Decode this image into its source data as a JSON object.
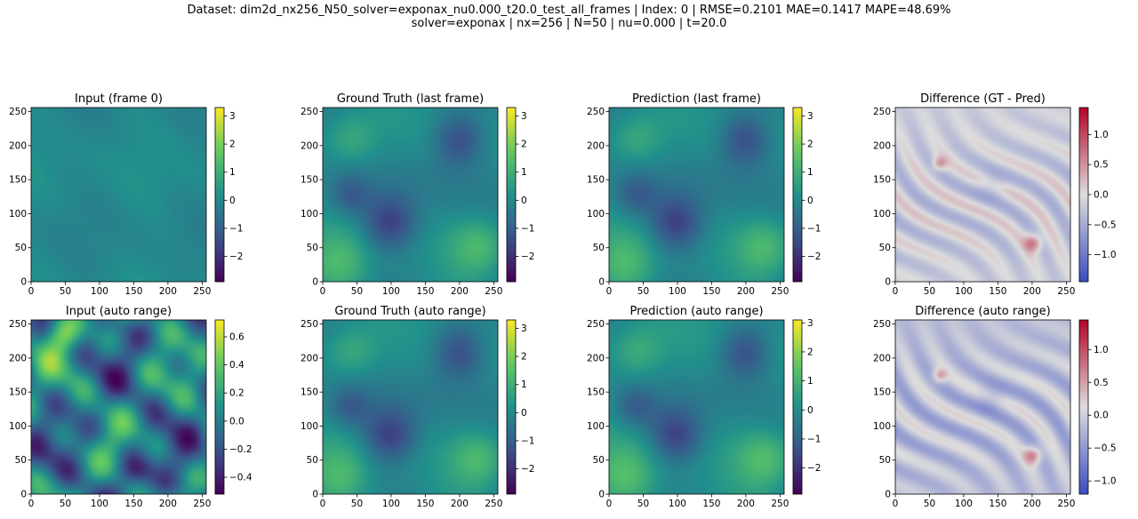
{
  "header": {
    "line1": "Dataset: dim2d_nx256_N50_solver=exponax_nu0.000_t20.0_test_all_frames | Index: 0 | RMSE=0.2101  MAE=0.1417  MAPE=48.69%",
    "line2": "solver=exponax | nx=256 | N=50 | nu=0.000 | t=20.0"
  },
  "colors": {
    "viridis": [
      "#440154",
      "#3b528b",
      "#21918c",
      "#5ec962",
      "#fde725"
    ],
    "coolwarm": [
      "#3b4cc0",
      "#dddddd",
      "#b40426"
    ]
  },
  "chart_data": [
    {
      "type": "heatmap",
      "title": "Input (frame 0)",
      "colormap": "viridis",
      "field": "input_flat",
      "xlim": [
        0,
        256
      ],
      "ylim": [
        0,
        256
      ],
      "xticks": [
        0,
        50,
        100,
        150,
        200,
        250
      ],
      "yticks": [
        0,
        50,
        100,
        150,
        200,
        250
      ],
      "colorbar": {
        "range": [
          -2.9,
          3.3
        ],
        "ticks": [
          3,
          2,
          1,
          0,
          -1,
          -2
        ],
        "tick_labels": [
          "3",
          "2",
          "1",
          "0",
          "−1",
          "−2"
        ]
      }
    },
    {
      "type": "heatmap",
      "title": "Ground Truth (last frame)",
      "colormap": "viridis",
      "field": "vortex",
      "xlim": [
        0,
        256
      ],
      "ylim": [
        0,
        256
      ],
      "xticks": [
        0,
        50,
        100,
        150,
        200,
        250
      ],
      "yticks": [
        0,
        50,
        100,
        150,
        200,
        250
      ],
      "colorbar": {
        "range": [
          -2.9,
          3.3
        ],
        "ticks": [
          3,
          2,
          1,
          0,
          -1,
          -2
        ],
        "tick_labels": [
          "3",
          "2",
          "1",
          "0",
          "−1",
          "−2"
        ]
      }
    },
    {
      "type": "heatmap",
      "title": "Prediction (last frame)",
      "colormap": "viridis",
      "field": "vortex",
      "xlim": [
        0,
        256
      ],
      "ylim": [
        0,
        256
      ],
      "xticks": [
        0,
        50,
        100,
        150,
        200,
        250
      ],
      "yticks": [
        0,
        50,
        100,
        150,
        200,
        250
      ],
      "colorbar": {
        "range": [
          -2.9,
          3.3
        ],
        "ticks": [
          3,
          2,
          1,
          0,
          -1,
          -2
        ],
        "tick_labels": [
          "3",
          "2",
          "1",
          "0",
          "−1",
          "−2"
        ]
      }
    },
    {
      "type": "heatmap",
      "title": "Difference (GT - Pred)",
      "colormap": "coolwarm",
      "field": "diff",
      "xlim": [
        0,
        256
      ],
      "ylim": [
        0,
        256
      ],
      "xticks": [
        0,
        50,
        100,
        150,
        200,
        250
      ],
      "yticks": [
        0,
        50,
        100,
        150,
        200,
        250
      ],
      "colorbar": {
        "range": [
          -1.45,
          1.45
        ],
        "ticks": [
          1,
          0.5,
          0,
          -0.5,
          -1
        ],
        "tick_labels": [
          "1.0",
          "0.5",
          "0.0",
          "−0.5",
          "−1.0"
        ]
      }
    },
    {
      "type": "heatmap",
      "title": "Input (auto range)",
      "colormap": "viridis",
      "field": "input_auto",
      "xlim": [
        0,
        256
      ],
      "ylim": [
        0,
        256
      ],
      "xticks": [
        0,
        50,
        100,
        150,
        200,
        250
      ],
      "yticks": [
        0,
        50,
        100,
        150,
        200,
        250
      ],
      "colorbar": {
        "range": [
          -0.52,
          0.72
        ],
        "ticks": [
          0.6,
          0.4,
          0.2,
          0,
          -0.2,
          -0.4
        ],
        "tick_labels": [
          "0.6",
          "0.4",
          "0.2",
          "0.0",
          "−0.2",
          "−0.4"
        ]
      }
    },
    {
      "type": "heatmap",
      "title": "Ground Truth (auto range)",
      "colormap": "viridis",
      "field": "vortex",
      "xlim": [
        0,
        256
      ],
      "ylim": [
        0,
        256
      ],
      "xticks": [
        0,
        50,
        100,
        150,
        200,
        250
      ],
      "yticks": [
        0,
        50,
        100,
        150,
        200,
        250
      ],
      "colorbar": {
        "range": [
          -2.9,
          3.3
        ],
        "ticks": [
          3,
          2,
          1,
          0,
          -1,
          -2
        ],
        "tick_labels": [
          "3",
          "2",
          "1",
          "0",
          "−1",
          "−2"
        ]
      }
    },
    {
      "type": "heatmap",
      "title": "Prediction (auto range)",
      "colormap": "viridis",
      "field": "vortex",
      "xlim": [
        0,
        256
      ],
      "ylim": [
        0,
        256
      ],
      "xticks": [
        0,
        50,
        100,
        150,
        200,
        250
      ],
      "yticks": [
        0,
        50,
        100,
        150,
        200,
        250
      ],
      "colorbar": {
        "range": [
          -2.9,
          3.1
        ],
        "ticks": [
          3,
          2,
          1,
          0,
          -1,
          -2
        ],
        "tick_labels": [
          "3",
          "2",
          "1",
          "0",
          "−1",
          "−2"
        ]
      }
    },
    {
      "type": "heatmap",
      "title": "Difference (auto range)",
      "colormap": "coolwarm",
      "field": "diff",
      "xlim": [
        0,
        256
      ],
      "ylim": [
        0,
        256
      ],
      "xticks": [
        0,
        50,
        100,
        150,
        200,
        250
      ],
      "yticks": [
        0,
        50,
        100,
        150,
        200,
        250
      ],
      "colorbar": {
        "range": [
          -1.2,
          1.45
        ],
        "ticks": [
          1,
          0.5,
          0,
          -0.5,
          -1
        ],
        "tick_labels": [
          "1.0",
          "0.5",
          "0.0",
          "−0.5",
          "−1.0"
        ]
      }
    }
  ]
}
